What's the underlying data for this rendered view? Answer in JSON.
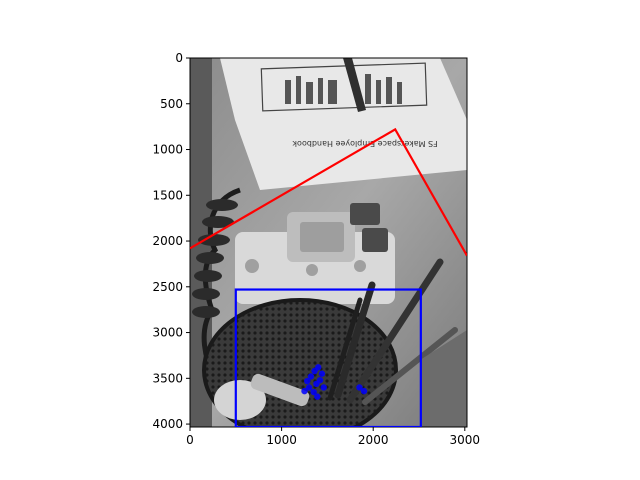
{
  "figure": {
    "background": "#ffffff"
  },
  "chart_data": {
    "type": "image",
    "content": "grayscale photo of a desk: employee handbook, telephone, mesh pencil cup with pens",
    "image_text": "FS Makerspace Employee Handbook",
    "xlim": [
      0,
      3024
    ],
    "ylim": [
      4032,
      0
    ],
    "x_ticks": [
      0,
      1000,
      2000,
      3000
    ],
    "y_ticks": [
      0,
      500,
      1000,
      1500,
      2000,
      2500,
      3000,
      3500,
      4000
    ],
    "xlabel": "",
    "ylabel": "",
    "title": "",
    "overlays": [
      {
        "kind": "polyline",
        "color": "#ff0000",
        "points": [
          [
            0,
            2080
          ],
          [
            2240,
            780
          ],
          [
            3024,
            2160
          ]
        ]
      },
      {
        "kind": "rectangle",
        "color": "#0000ff",
        "x0": 500,
        "y0": 2530,
        "x1": 2520,
        "y1": 4032
      },
      {
        "kind": "scatter-cluster",
        "color": "#0000ff",
        "points": [
          [
            1280,
            3530
          ],
          [
            1320,
            3480
          ],
          [
            1360,
            3420
          ],
          [
            1400,
            3380
          ],
          [
            1440,
            3450
          ],
          [
            1300,
            3600
          ],
          [
            1380,
            3560
          ],
          [
            1420,
            3520
          ],
          [
            1350,
            3650
          ],
          [
            1250,
            3640
          ],
          [
            1460,
            3600
          ],
          [
            1390,
            3700
          ],
          [
            1850,
            3600
          ],
          [
            1900,
            3640
          ]
        ]
      }
    ]
  }
}
